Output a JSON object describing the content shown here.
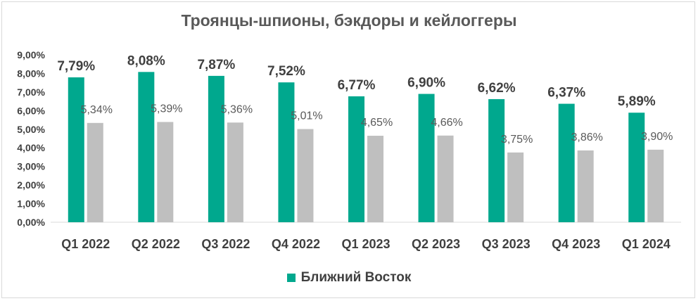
{
  "chart_data": {
    "type": "bar",
    "title": "Троянцы-шпионы, бэкдоры и кейлоггеры",
    "categories": [
      "Q1 2022",
      "Q2 2022",
      "Q3 2022",
      "Q4 2022",
      "Q1 2023",
      "Q2 2023",
      "Q3 2023",
      "Q4 2023",
      "Q1 2024"
    ],
    "series": [
      {
        "name": "Ближний Восток",
        "color": "#00a88e",
        "values": [
          7.79,
          8.08,
          7.87,
          7.52,
          6.77,
          6.9,
          6.62,
          6.37,
          5.89
        ],
        "labels": [
          "7,79%",
          "8,08%",
          "7,87%",
          "7,52%",
          "6,77%",
          "6,90%",
          "6,62%",
          "6,37%",
          "5,89%"
        ]
      },
      {
        "color": "#bfbfbf",
        "values": [
          5.34,
          5.39,
          5.36,
          5.01,
          4.65,
          4.66,
          3.75,
          3.86,
          3.9
        ],
        "labels": [
          "5,34%",
          "5,39%",
          "5,36%",
          "5,01%",
          "4,65%",
          "4,66%",
          "3,75%",
          "3,86%",
          "3,90%"
        ]
      }
    ],
    "ylim": [
      0,
      9
    ],
    "yticks": [
      "0,00%",
      "1,00%",
      "2,00%",
      "3,00%",
      "4,00%",
      "5,00%",
      "6,00%",
      "7,00%",
      "8,00%",
      "9,00%"
    ],
    "grid": false,
    "legend_position": "bottom"
  }
}
